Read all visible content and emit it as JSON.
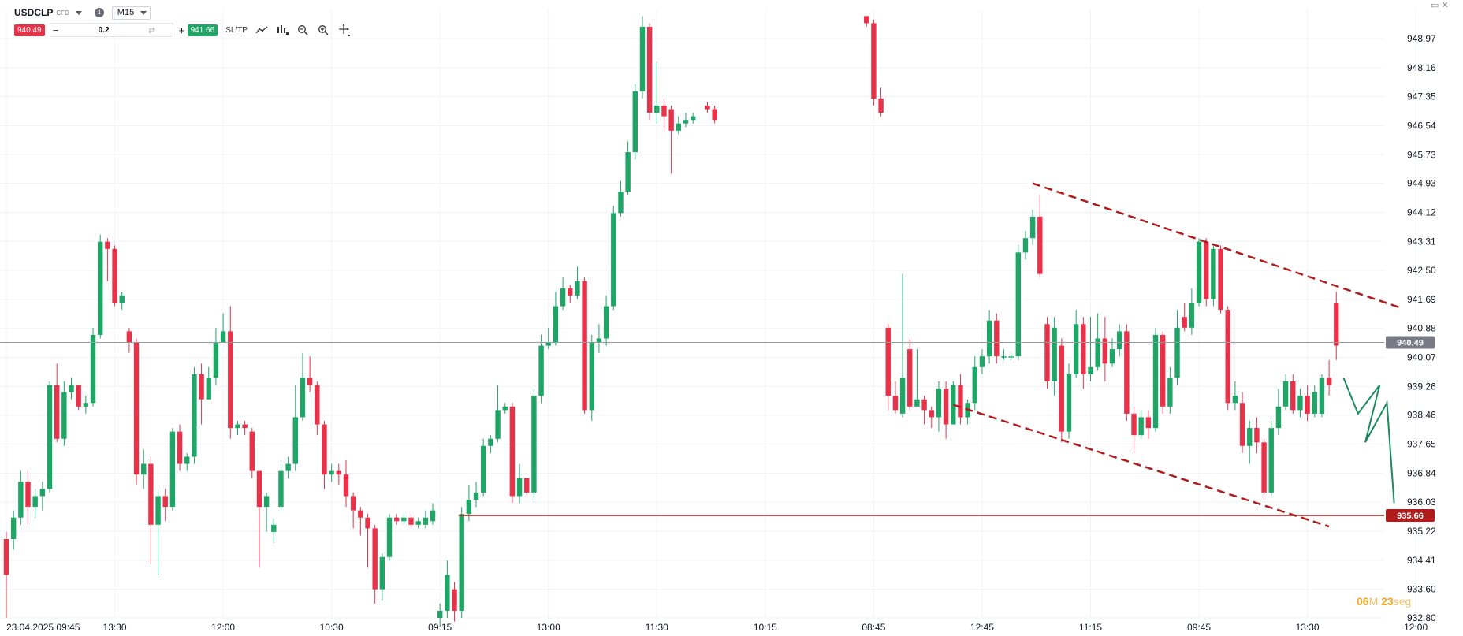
{
  "header": {
    "symbol": "USDCLP",
    "instrument_type": "CFD",
    "timeframe": "M15",
    "sell_price": "940.49",
    "quantity": "0.2",
    "buy_price": "941.66",
    "sltp_label": "SL/TP"
  },
  "timer": {
    "minutes": "06",
    "minutes_unit": "M",
    "seconds": "23",
    "seconds_unit": "seg"
  },
  "colors": {
    "up": "#1fa566",
    "down": "#e8324a",
    "support": "#b01c1c",
    "trend": "#b01c1c",
    "projection": "#1d8a5e",
    "current_price_tag": "#787b86"
  },
  "chart_data": {
    "type": "candlestick",
    "title": "",
    "ylim": [
      932.8,
      949.6
    ],
    "y_ticks": [
      "948.97",
      "948.16",
      "947.35",
      "946.54",
      "945.73",
      "944.93",
      "944.12",
      "943.31",
      "942.50",
      "941.69",
      "940.88",
      "940.07",
      "939.26",
      "938.46",
      "937.65",
      "936.84",
      "936.03",
      "935.22",
      "934.41",
      "933.60",
      "932.80"
    ],
    "x_ticks": [
      {
        "label": "23.04.2025 09:45",
        "bar": 0
      },
      {
        "label": "13:30",
        "bar": 15
      },
      {
        "label": "12:00",
        "bar": 30
      },
      {
        "label": "10:30",
        "bar": 45
      },
      {
        "label": "09:15",
        "bar": 60
      },
      {
        "label": "13:00",
        "bar": 75
      },
      {
        "label": "11:30",
        "bar": 90
      },
      {
        "label": "10:15",
        "bar": 105
      },
      {
        "label": "08:45",
        "bar": 120
      },
      {
        "label": "12:45",
        "bar": 135
      },
      {
        "label": "11:15",
        "bar": 150
      },
      {
        "label": "09:45",
        "bar": 165
      },
      {
        "label": "13:30",
        "bar": 180
      },
      {
        "label": "12:00",
        "bar": 195
      }
    ],
    "candles": [
      [
        0,
        935.0,
        934.0,
        935.2,
        932.8
      ],
      [
        1,
        935.0,
        935.6,
        935.8,
        934.7
      ],
      [
        2,
        935.6,
        936.6,
        936.9,
        935.4
      ],
      [
        3,
        936.6,
        935.9,
        936.9,
        935.4
      ],
      [
        4,
        935.9,
        936.2,
        936.4,
        935.6
      ],
      [
        5,
        936.2,
        936.4,
        936.6,
        935.8
      ],
      [
        6,
        936.4,
        939.3,
        939.4,
        936.3
      ],
      [
        7,
        939.3,
        937.8,
        939.9,
        937.7
      ],
      [
        8,
        937.8,
        939.1,
        939.4,
        937.6
      ],
      [
        9,
        939.1,
        939.3,
        939.5,
        938.9
      ],
      [
        10,
        939.3,
        938.7,
        938.9,
        938.6
      ],
      [
        11,
        938.7,
        938.8,
        939.0,
        938.5
      ],
      [
        12,
        938.8,
        940.7,
        940.9,
        938.7
      ],
      [
        13,
        940.7,
        943.3,
        943.5,
        940.6
      ],
      [
        14,
        943.3,
        943.1,
        943.4,
        942.2
      ],
      [
        15,
        943.1,
        941.6,
        943.2,
        941.5
      ],
      [
        16,
        941.6,
        941.8,
        941.9,
        941.4
      ],
      [
        17,
        940.8,
        940.5,
        940.9,
        940.2
      ],
      [
        18,
        940.5,
        936.8,
        940.6,
        936.5
      ],
      [
        19,
        936.8,
        937.1,
        937.5,
        936.4
      ],
      [
        20,
        937.1,
        935.4,
        937.3,
        934.3
      ],
      [
        21,
        935.4,
        936.2,
        936.4,
        934.0
      ],
      [
        22,
        936.2,
        935.9,
        936.4,
        935.5
      ],
      [
        23,
        935.9,
        938.0,
        938.1,
        935.8
      ],
      [
        24,
        938.0,
        937.1,
        938.2,
        936.9
      ],
      [
        25,
        937.1,
        937.3,
        937.4,
        936.9
      ],
      [
        26,
        937.3,
        939.6,
        939.8,
        937.1
      ],
      [
        27,
        939.6,
        938.9,
        939.9,
        938.2
      ],
      [
        28,
        938.9,
        939.5,
        939.8,
        939.1
      ],
      [
        29,
        939.5,
        940.5,
        940.9,
        939.3
      ],
      [
        30,
        940.5,
        940.8,
        941.3,
        940.6
      ],
      [
        31,
        940.8,
        938.1,
        941.5,
        937.8
      ],
      [
        32,
        938.1,
        938.2,
        938.3,
        937.9
      ],
      [
        33,
        938.2,
        938.1,
        938.3,
        937.9
      ],
      [
        34,
        938.0,
        936.9,
        938.1,
        936.7
      ],
      [
        35,
        936.9,
        935.9,
        936.9,
        934.2
      ],
      [
        36,
        935.9,
        936.2,
        936.3,
        935.2
      ],
      [
        37,
        935.2,
        935.4,
        935.6,
        934.9
      ],
      [
        38,
        935.9,
        936.9,
        937.1,
        935.8
      ],
      [
        39,
        936.9,
        937.1,
        937.3,
        936.7
      ],
      [
        40,
        937.1,
        938.4,
        939.3,
        936.9
      ],
      [
        41,
        938.4,
        939.5,
        940.2,
        938.3
      ],
      [
        42,
        939.5,
        939.3,
        940.1,
        939.1
      ],
      [
        43,
        939.3,
        938.2,
        939.4,
        937.9
      ],
      [
        44,
        938.2,
        936.8,
        938.3,
        936.4
      ],
      [
        45,
        936.8,
        936.9,
        937.1,
        936.6
      ],
      [
        46,
        936.9,
        936.8,
        937.1,
        936.5
      ],
      [
        47,
        936.8,
        936.2,
        937.2,
        935.9
      ],
      [
        48,
        936.2,
        935.8,
        936.3,
        935.3
      ],
      [
        49,
        935.8,
        935.6,
        935.9,
        935.1
      ],
      [
        50,
        935.6,
        935.3,
        935.7,
        934.2
      ],
      [
        51,
        935.3,
        933.6,
        935.4,
        933.2
      ],
      [
        52,
        933.6,
        934.5,
        934.6,
        933.3
      ],
      [
        53,
        934.5,
        935.6,
        935.7,
        934.4
      ],
      [
        54,
        935.6,
        935.5,
        935.7,
        935.4
      ],
      [
        55,
        935.5,
        935.6,
        935.7,
        935.4
      ],
      [
        56,
        935.6,
        935.4,
        935.7,
        935.3
      ],
      [
        57,
        935.4,
        935.5,
        935.6,
        935.3
      ],
      [
        58,
        935.4,
        935.6,
        935.8,
        935.3
      ],
      [
        59,
        935.5,
        935.8,
        936.0,
        935.4
      ],
      [
        60,
        932.8,
        933.0,
        933.2,
        932.6
      ],
      [
        61,
        933.0,
        934.0,
        934.4,
        932.8
      ],
      [
        62,
        933.6,
        933.0,
        933.8,
        932.7
      ],
      [
        63,
        933.0,
        935.7,
        935.9,
        932.8
      ],
      [
        64,
        935.7,
        936.1,
        936.5,
        935.5
      ],
      [
        65,
        936.1,
        936.3,
        936.6,
        935.9
      ],
      [
        66,
        936.3,
        937.6,
        937.8,
        936.2
      ],
      [
        67,
        937.6,
        937.8,
        937.9,
        937.4
      ],
      [
        68,
        937.8,
        938.6,
        939.3,
        937.7
      ],
      [
        69,
        938.6,
        938.7,
        938.8,
        938.5
      ],
      [
        70,
        938.7,
        936.2,
        938.8,
        936.0
      ],
      [
        71,
        936.2,
        936.7,
        937.1,
        936.0
      ],
      [
        72,
        936.7,
        936.3,
        936.6,
        936.2
      ],
      [
        73,
        936.3,
        939.0,
        939.2,
        936.1
      ],
      [
        74,
        939.0,
        940.4,
        940.7,
        938.8
      ],
      [
        75,
        940.4,
        940.5,
        940.9,
        940.3
      ],
      [
        76,
        940.5,
        941.5,
        941.9,
        940.4
      ],
      [
        77,
        941.5,
        942.0,
        942.3,
        941.4
      ],
      [
        78,
        942.0,
        941.8,
        942.1,
        941.6
      ],
      [
        79,
        941.8,
        942.2,
        942.6,
        941.7
      ],
      [
        80,
        942.2,
        938.6,
        942.3,
        938.5
      ],
      [
        81,
        938.6,
        940.5,
        940.7,
        938.3
      ],
      [
        82,
        940.5,
        940.6,
        941.0,
        940.2
      ],
      [
        83,
        940.6,
        941.5,
        941.8,
        940.4
      ],
      [
        84,
        941.5,
        944.1,
        944.3,
        941.4
      ],
      [
        85,
        944.1,
        944.7,
        945.0,
        944.0
      ],
      [
        86,
        944.7,
        945.8,
        946.1,
        944.6
      ],
      [
        87,
        945.8,
        947.5,
        947.7,
        945.6
      ],
      [
        88,
        947.5,
        949.3,
        949.6,
        947.3
      ],
      [
        89,
        949.3,
        946.9,
        949.4,
        946.7
      ],
      [
        90,
        946.9,
        947.1,
        948.3,
        946.6
      ],
      [
        91,
        947.1,
        946.8,
        947.3,
        946.4
      ],
      [
        92,
        947.0,
        946.4,
        947.1,
        945.2
      ],
      [
        93,
        946.4,
        946.6,
        946.8,
        946.3
      ],
      [
        94,
        946.6,
        946.7,
        946.9,
        946.5
      ],
      [
        95,
        946.7,
        946.8,
        946.9,
        946.6
      ],
      [
        97,
        947.1,
        947.0,
        947.2,
        946.9
      ],
      [
        98,
        947.0,
        946.7,
        947.1,
        946.6
      ],
      [
        119,
        949.6,
        949.4,
        949.6,
        949.3
      ],
      [
        120,
        949.4,
        947.3,
        949.5,
        947.1
      ],
      [
        121,
        947.3,
        946.9,
        947.6,
        946.8
      ],
      [
        122,
        940.9,
        939.0,
        941.0,
        938.6
      ],
      [
        123,
        939.0,
        938.6,
        939.4,
        938.5
      ],
      [
        124,
        938.5,
        939.5,
        942.4,
        938.4
      ],
      [
        125,
        940.3,
        938.7,
        940.6,
        938.6
      ],
      [
        126,
        938.7,
        938.9,
        940.3,
        938.8
      ],
      [
        127,
        938.9,
        938.6,
        939.0,
        938.2
      ],
      [
        128,
        938.6,
        938.4,
        938.7,
        938.1
      ],
      [
        129,
        938.4,
        939.2,
        939.4,
        938.0
      ],
      [
        130,
        939.2,
        938.2,
        939.4,
        937.8
      ],
      [
        131,
        938.2,
        939.3,
        939.4,
        938.2
      ],
      [
        132,
        939.3,
        938.4,
        939.6,
        938.2
      ],
      [
        133,
        938.4,
        938.8,
        938.9,
        938.2
      ],
      [
        134,
        938.8,
        939.8,
        940.1,
        938.6
      ],
      [
        135,
        939.8,
        940.1,
        940.3,
        939.6
      ],
      [
        136,
        940.1,
        941.1,
        941.4,
        939.9
      ],
      [
        137,
        941.1,
        940.1,
        941.3,
        939.9
      ],
      [
        138,
        940.1,
        940.1,
        940.3,
        940.0
      ],
      [
        139,
        940.1,
        940.1,
        940.2,
        940.0
      ],
      [
        140,
        940.1,
        943.0,
        943.2,
        940.0
      ],
      [
        141,
        943.0,
        943.4,
        943.6,
        942.8
      ],
      [
        142,
        943.4,
        944.0,
        944.2,
        943.2
      ],
      [
        143,
        944.0,
        942.4,
        944.6,
        942.3
      ],
      [
        144,
        941.0,
        939.4,
        941.2,
        939.2
      ],
      [
        145,
        939.4,
        940.9,
        941.2,
        939.0
      ],
      [
        146,
        940.4,
        938.0,
        940.6,
        937.7
      ],
      [
        147,
        938.0,
        939.6,
        939.9,
        937.8
      ],
      [
        148,
        939.6,
        941.0,
        941.4,
        939.5
      ],
      [
        149,
        941.0,
        939.6,
        941.2,
        939.2
      ],
      [
        150,
        939.6,
        939.8,
        941.2,
        939.4
      ],
      [
        151,
        939.8,
        940.6,
        941.3,
        939.7
      ],
      [
        152,
        940.6,
        939.9,
        941.2,
        939.4
      ],
      [
        153,
        939.9,
        940.3,
        940.6,
        939.8
      ],
      [
        154,
        940.3,
        940.8,
        941.0,
        940.1
      ],
      [
        155,
        940.8,
        938.5,
        941.0,
        938.3
      ],
      [
        156,
        938.5,
        937.9,
        938.7,
        937.4
      ],
      [
        157,
        937.9,
        938.4,
        938.6,
        937.8
      ],
      [
        158,
        938.4,
        938.1,
        938.6,
        937.8
      ],
      [
        159,
        938.1,
        940.7,
        940.9,
        938.0
      ],
      [
        160,
        940.7,
        938.7,
        940.8,
        938.5
      ],
      [
        161,
        938.7,
        939.5,
        939.8,
        938.5
      ],
      [
        162,
        939.5,
        940.9,
        941.4,
        939.3
      ],
      [
        163,
        941.2,
        940.9,
        941.6,
        940.8
      ],
      [
        164,
        940.9,
        941.6,
        942.0,
        940.7
      ],
      [
        165,
        941.6,
        943.3,
        943.4,
        941.5
      ],
      [
        166,
        943.3,
        941.7,
        943.4,
        941.5
      ],
      [
        167,
        941.7,
        943.1,
        943.2,
        941.5
      ],
      [
        168,
        943.1,
        941.4,
        943.2,
        941.3
      ],
      [
        169,
        941.4,
        938.8,
        941.5,
        938.6
      ],
      [
        170,
        938.8,
        939.0,
        939.4,
        938.6
      ],
      [
        171,
        938.8,
        937.6,
        939.1,
        937.4
      ],
      [
        172,
        937.6,
        938.1,
        938.3,
        937.1
      ],
      [
        173,
        938.1,
        937.7,
        938.4,
        937.4
      ],
      [
        174,
        937.7,
        936.3,
        937.8,
        936.1
      ],
      [
        175,
        936.3,
        938.1,
        938.3,
        936.2
      ],
      [
        176,
        938.1,
        938.7,
        939.2,
        937.9
      ],
      [
        177,
        938.7,
        939.4,
        939.6,
        938.6
      ],
      [
        178,
        939.4,
        938.6,
        939.6,
        938.5
      ],
      [
        179,
        938.6,
        939.0,
        939.2,
        938.4
      ],
      [
        180,
        939.0,
        938.5,
        939.3,
        938.3
      ],
      [
        181,
        938.5,
        939.1,
        939.3,
        938.4
      ],
      [
        182,
        938.5,
        939.5,
        939.6,
        938.4
      ],
      [
        183,
        939.5,
        939.3,
        940.0,
        939.0
      ],
      [
        184,
        941.6,
        940.4,
        941.9,
        940.0
      ]
    ],
    "support_line": {
      "price": 935.66,
      "label": "935.66",
      "from_bar": 63
    },
    "current_price": {
      "price": 940.49,
      "label": "940.49"
    },
    "trend_lines": [
      {
        "style": "dashed",
        "from": [
          142,
          944.93
        ],
        "to": [
          193,
          941.45
        ]
      },
      {
        "style": "dashed",
        "from": [
          131,
          938.75
        ],
        "to": [
          183,
          935.35
        ]
      }
    ],
    "projection_path": [
      [
        185,
        939.5
      ],
      [
        187,
        938.5
      ],
      [
        190,
        939.3
      ],
      [
        188,
        937.7
      ],
      [
        191,
        938.8
      ],
      [
        192,
        936.0
      ]
    ]
  }
}
